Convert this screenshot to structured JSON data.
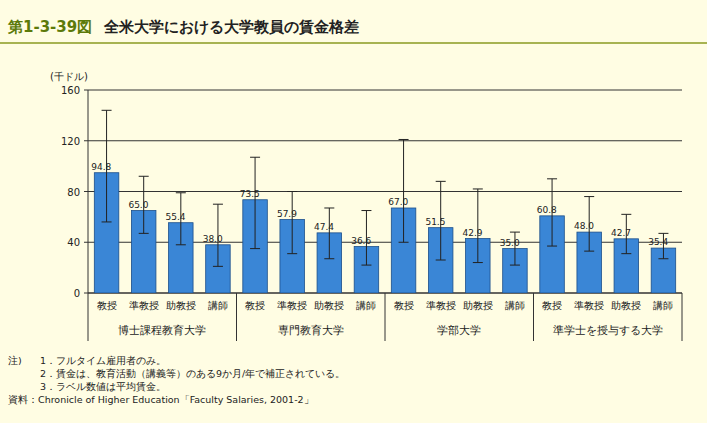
{
  "chart_data": {
    "type": "bar",
    "title": "第1-3-39図　全米大学における大学教員の賃金格差",
    "y_label": "(千ドル)",
    "categories": [
      "教授",
      "準教授",
      "助教授",
      "講師",
      "教授",
      "準教授",
      "助教授",
      "講師",
      "教授",
      "準教授",
      "助教授",
      "講師",
      "教授",
      "準教授",
      "助教授",
      "講師"
    ],
    "group_labels": [
      "博士課程教育大学",
      "専門教育大学",
      "学部大学",
      "準学士を授与する大学"
    ],
    "values": [
      94.8,
      65.0,
      55.4,
      38.0,
      73.5,
      57.9,
      47.4,
      36.6,
      67.0,
      51.5,
      42.9,
      35.0,
      60.8,
      48.0,
      42.7,
      35.4
    ],
    "value_labels": [
      "94.8",
      "65.0",
      "55.4",
      "38.0",
      "73.5",
      "57.9",
      "47.4",
      "36.6",
      "67.0",
      "51.5",
      "42.9",
      "35.0",
      "60.8",
      "48.0",
      "42.7",
      "35.4"
    ],
    "error_low": [
      56,
      47,
      38,
      21,
      35,
      31,
      27,
      22,
      40,
      26,
      24,
      22,
      37,
      33,
      31,
      27
    ],
    "error_high": [
      144,
      92,
      79,
      70,
      107,
      80,
      67,
      65,
      121,
      88,
      82,
      48,
      90,
      76,
      62,
      47
    ],
    "color": "#3a86d6",
    "ylim": [
      0,
      160
    ],
    "yticks": [
      0,
      40,
      80,
      120,
      160
    ],
    "grid": true,
    "data_labels": true,
    "notes_label": "注)",
    "notes": [
      "1．フルタイム雇用者のみ。",
      "2．賃金は、教育活動（講義等）のある9か月/年で補正されている。",
      "3．ラベル数値は平均賃金。"
    ],
    "source": "資料：Chronicle of Higher Education「Faculty Salaries, 2001-2」"
  }
}
